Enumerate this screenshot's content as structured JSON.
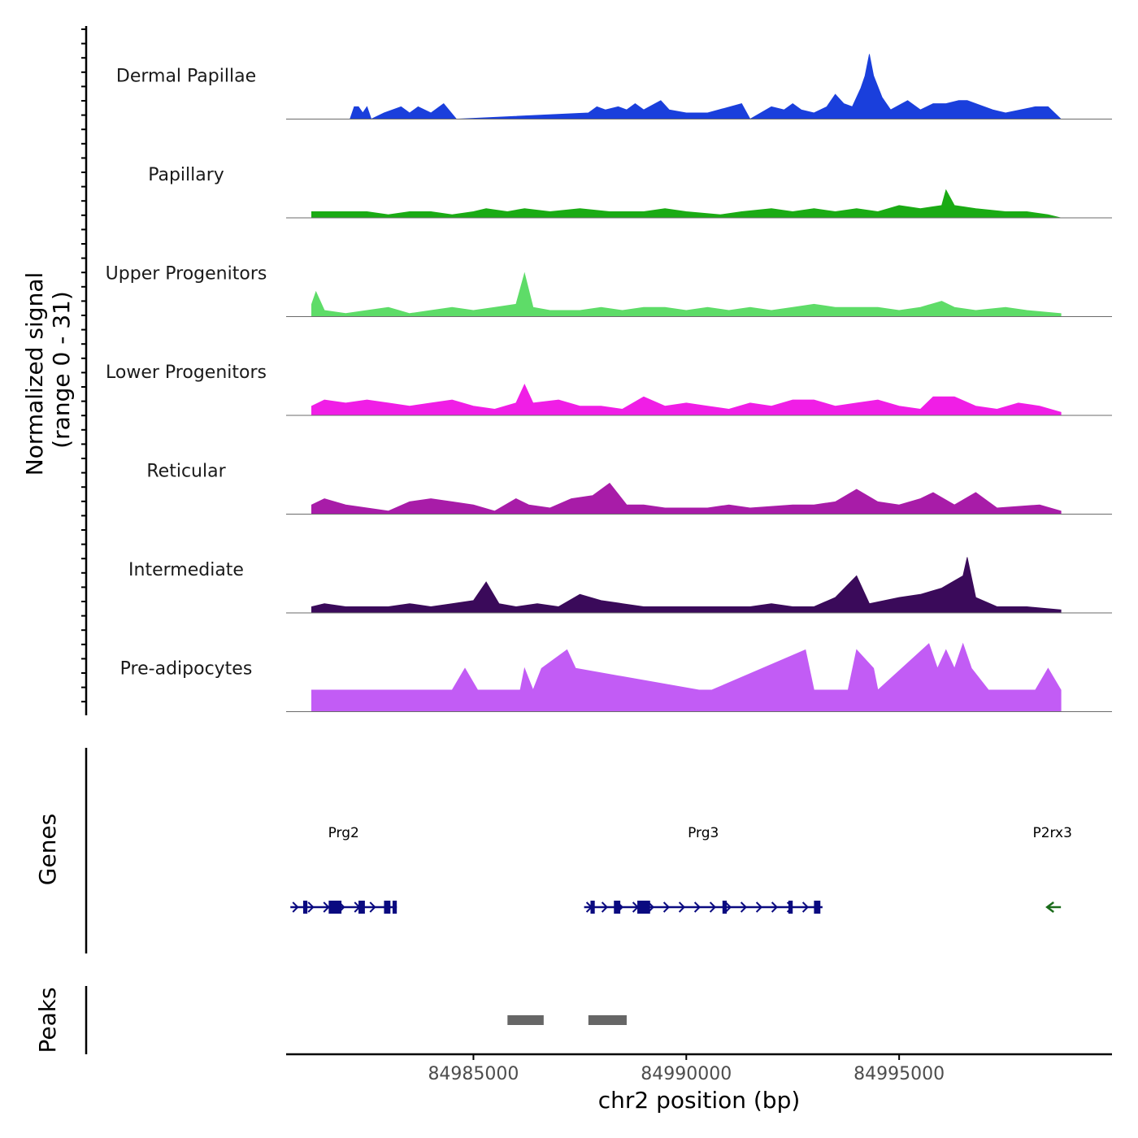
{
  "chart_data": {
    "type": "area",
    "title": "",
    "y_axis_label_line1": "Normalized signal",
    "y_axis_label_line2": "(range 0 - 31)",
    "ylim": [
      0,
      31
    ],
    "xlabel": "chr2 position (bp)",
    "xlim": [
      84980600,
      85000000
    ],
    "x_ticks": [
      84985000,
      84990000,
      84995000
    ],
    "x_tick_labels": [
      "84985000",
      "84990000",
      "84995000"
    ],
    "series": [
      {
        "name": "Dermal Papillae",
        "color": "#1a3fdc",
        "points": [
          [
            84982100,
            0
          ],
          [
            84982200,
            4
          ],
          [
            84982300,
            4
          ],
          [
            84982400,
            2
          ],
          [
            84982500,
            4
          ],
          [
            84982600,
            0
          ],
          [
            84982900,
            2
          ],
          [
            84983300,
            4
          ],
          [
            84983500,
            2
          ],
          [
            84983700,
            4
          ],
          [
            84984000,
            2
          ],
          [
            84984300,
            5
          ],
          [
            84984600,
            0
          ],
          [
            84987700,
            2
          ],
          [
            84987900,
            4
          ],
          [
            84988100,
            3
          ],
          [
            84988400,
            4
          ],
          [
            84988600,
            3
          ],
          [
            84988800,
            5
          ],
          [
            84989000,
            3
          ],
          [
            84989400,
            6
          ],
          [
            84989600,
            3
          ],
          [
            84990000,
            2
          ],
          [
            84990500,
            2
          ],
          [
            84991300,
            5
          ],
          [
            84991500,
            0
          ],
          [
            84992000,
            4
          ],
          [
            84992300,
            3
          ],
          [
            84992500,
            5
          ],
          [
            84992700,
            3
          ],
          [
            84993000,
            2
          ],
          [
            84993300,
            4
          ],
          [
            84993500,
            8
          ],
          [
            84993700,
            5
          ],
          [
            84993900,
            4
          ],
          [
            84994100,
            10
          ],
          [
            84994200,
            14
          ],
          [
            84994300,
            21
          ],
          [
            84994400,
            14
          ],
          [
            84994600,
            7
          ],
          [
            84994800,
            3
          ],
          [
            84995200,
            6
          ],
          [
            84995500,
            3
          ],
          [
            84995800,
            5
          ],
          [
            84996100,
            5
          ],
          [
            84996400,
            6
          ],
          [
            84996600,
            6
          ],
          [
            84997200,
            3
          ],
          [
            84997500,
            2
          ],
          [
            84998200,
            4
          ],
          [
            84998500,
            4
          ],
          [
            84998800,
            0
          ]
        ]
      },
      {
        "name": "Papillary",
        "color": "#1aab14",
        "points": [
          [
            84981200,
            2
          ],
          [
            84981500,
            2
          ],
          [
            84982000,
            2
          ],
          [
            84982500,
            2
          ],
          [
            84983000,
            1
          ],
          [
            84983500,
            2
          ],
          [
            84984000,
            2
          ],
          [
            84984500,
            1
          ],
          [
            84985000,
            2
          ],
          [
            84985300,
            3
          ],
          [
            84985800,
            2
          ],
          [
            84986200,
            3
          ],
          [
            84986800,
            2
          ],
          [
            84987500,
            3
          ],
          [
            84988200,
            2
          ],
          [
            84989000,
            2
          ],
          [
            84989500,
            3
          ],
          [
            84990000,
            2
          ],
          [
            84990800,
            1
          ],
          [
            84991300,
            2
          ],
          [
            84992000,
            3
          ],
          [
            84992500,
            2
          ],
          [
            84993000,
            3
          ],
          [
            84993500,
            2
          ],
          [
            84994000,
            3
          ],
          [
            84994500,
            2
          ],
          [
            84995000,
            4
          ],
          [
            84995500,
            3
          ],
          [
            84996000,
            4
          ],
          [
            84996100,
            9
          ],
          [
            84996300,
            4
          ],
          [
            84996800,
            3
          ],
          [
            84997500,
            2
          ],
          [
            84998000,
            2
          ],
          [
            84998500,
            1
          ],
          [
            84998800,
            0
          ]
        ]
      },
      {
        "name": "Upper Progenitors",
        "color": "#5edc68",
        "points": [
          [
            84981200,
            4
          ],
          [
            84981300,
            8
          ],
          [
            84981500,
            2
          ],
          [
            84982000,
            1
          ],
          [
            84982500,
            2
          ],
          [
            84983000,
            3
          ],
          [
            84983500,
            1
          ],
          [
            84984000,
            2
          ],
          [
            84984500,
            3
          ],
          [
            84985000,
            2
          ],
          [
            84985500,
            3
          ],
          [
            84986000,
            4
          ],
          [
            84986200,
            14
          ],
          [
            84986400,
            3
          ],
          [
            84986800,
            2
          ],
          [
            84987500,
            2
          ],
          [
            84988000,
            3
          ],
          [
            84988500,
            2
          ],
          [
            84989000,
            3
          ],
          [
            84989500,
            3
          ],
          [
            84990000,
            2
          ],
          [
            84990500,
            3
          ],
          [
            84991000,
            2
          ],
          [
            84991500,
            3
          ],
          [
            84992000,
            2
          ],
          [
            84992500,
            3
          ],
          [
            84993000,
            4
          ],
          [
            84993500,
            3
          ],
          [
            84994000,
            3
          ],
          [
            84994500,
            3
          ],
          [
            84995000,
            2
          ],
          [
            84995500,
            3
          ],
          [
            84996000,
            5
          ],
          [
            84996300,
            3
          ],
          [
            84996800,
            2
          ],
          [
            84997500,
            3
          ],
          [
            84998000,
            2
          ],
          [
            84998800,
            1
          ]
        ]
      },
      {
        "name": "Lower Progenitors",
        "color": "#f01ee6",
        "points": [
          [
            84981200,
            3
          ],
          [
            84981500,
            5
          ],
          [
            84982000,
            4
          ],
          [
            84982500,
            5
          ],
          [
            84983000,
            4
          ],
          [
            84983500,
            3
          ],
          [
            84984000,
            4
          ],
          [
            84984500,
            5
          ],
          [
            84985000,
            3
          ],
          [
            84985500,
            2
          ],
          [
            84986000,
            4
          ],
          [
            84986200,
            10
          ],
          [
            84986400,
            4
          ],
          [
            84987000,
            5
          ],
          [
            84987500,
            3
          ],
          [
            84988000,
            3
          ],
          [
            84988500,
            2
          ],
          [
            84989000,
            6
          ],
          [
            84989500,
            3
          ],
          [
            84990000,
            4
          ],
          [
            84990500,
            3
          ],
          [
            84991000,
            2
          ],
          [
            84991500,
            4
          ],
          [
            84992000,
            3
          ],
          [
            84992500,
            5
          ],
          [
            84993000,
            5
          ],
          [
            84993500,
            3
          ],
          [
            84994000,
            4
          ],
          [
            84994500,
            5
          ],
          [
            84995000,
            3
          ],
          [
            84995500,
            2
          ],
          [
            84995800,
            6
          ],
          [
            84996300,
            6
          ],
          [
            84996800,
            3
          ],
          [
            84997300,
            2
          ],
          [
            84997800,
            4
          ],
          [
            84998300,
            3
          ],
          [
            84998800,
            1
          ]
        ]
      },
      {
        "name": "Reticular",
        "color": "#a81ca8",
        "points": [
          [
            84981200,
            3
          ],
          [
            84981500,
            5
          ],
          [
            84982000,
            3
          ],
          [
            84982500,
            2
          ],
          [
            84983000,
            1
          ],
          [
            84983500,
            4
          ],
          [
            84984000,
            5
          ],
          [
            84984500,
            4
          ],
          [
            84985000,
            3
          ],
          [
            84985500,
            1
          ],
          [
            84986000,
            5
          ],
          [
            84986300,
            3
          ],
          [
            84986800,
            2
          ],
          [
            84987300,
            5
          ],
          [
            84987800,
            6
          ],
          [
            84988200,
            10
          ],
          [
            84988600,
            3
          ],
          [
            84989000,
            3
          ],
          [
            84989500,
            2
          ],
          [
            84990000,
            2
          ],
          [
            84990500,
            2
          ],
          [
            84991000,
            3
          ],
          [
            84991500,
            2
          ],
          [
            84992500,
            3
          ],
          [
            84993000,
            3
          ],
          [
            84993500,
            4
          ],
          [
            84994000,
            8
          ],
          [
            84994500,
            4
          ],
          [
            84995000,
            3
          ],
          [
            84995500,
            5
          ],
          [
            84995800,
            7
          ],
          [
            84996300,
            3
          ],
          [
            84996800,
            7
          ],
          [
            84997300,
            2
          ],
          [
            84998300,
            3
          ],
          [
            84998800,
            1
          ]
        ]
      },
      {
        "name": "Intermediate",
        "color": "#3a0a5a",
        "points": [
          [
            84981200,
            2
          ],
          [
            84981500,
            3
          ],
          [
            84982000,
            2
          ],
          [
            84982500,
            2
          ],
          [
            84983000,
            2
          ],
          [
            84983500,
            3
          ],
          [
            84984000,
            2
          ],
          [
            84984500,
            3
          ],
          [
            84985000,
            4
          ],
          [
            84985300,
            10
          ],
          [
            84985600,
            3
          ],
          [
            84986000,
            2
          ],
          [
            84986500,
            3
          ],
          [
            84987000,
            2
          ],
          [
            84987500,
            6
          ],
          [
            84988000,
            4
          ],
          [
            84988500,
            3
          ],
          [
            84989000,
            2
          ],
          [
            84989500,
            2
          ],
          [
            84990400,
            2
          ],
          [
            84991000,
            2
          ],
          [
            84991500,
            2
          ],
          [
            84992000,
            3
          ],
          [
            84992500,
            2
          ],
          [
            84993000,
            2
          ],
          [
            84993500,
            5
          ],
          [
            84994000,
            12
          ],
          [
            84994300,
            3
          ],
          [
            84995000,
            5
          ],
          [
            84995500,
            6
          ],
          [
            84996000,
            8
          ],
          [
            84996500,
            12
          ],
          [
            84996600,
            18
          ],
          [
            84996800,
            5
          ],
          [
            84997300,
            2
          ],
          [
            84998000,
            2
          ],
          [
            84998800,
            1
          ]
        ]
      },
      {
        "name": "Pre-adipocytes",
        "color": "#c25cf5",
        "points": [
          [
            84981200,
            7
          ],
          [
            84981400,
            7
          ],
          [
            84982700,
            7
          ],
          [
            84983000,
            7
          ],
          [
            84983300,
            7
          ],
          [
            84983500,
            7
          ],
          [
            84984000,
            7
          ],
          [
            84984500,
            7
          ],
          [
            84984800,
            14
          ],
          [
            84985100,
            7
          ],
          [
            84985800,
            7
          ],
          [
            84986100,
            7
          ],
          [
            84986200,
            14
          ],
          [
            84986400,
            7
          ],
          [
            84986600,
            14
          ],
          [
            84987200,
            20
          ],
          [
            84987400,
            14
          ],
          [
            84990300,
            7
          ],
          [
            84990600,
            7
          ],
          [
            84992800,
            20
          ],
          [
            84993000,
            7
          ],
          [
            84993300,
            7
          ],
          [
            84993800,
            7
          ],
          [
            84994000,
            20
          ],
          [
            84994400,
            14
          ],
          [
            84994500,
            7
          ],
          [
            84995700,
            22
          ],
          [
            84995900,
            14
          ],
          [
            84996100,
            20
          ],
          [
            84996300,
            14
          ],
          [
            84996500,
            22
          ],
          [
            84996700,
            14
          ],
          [
            84997100,
            7
          ],
          [
            84997500,
            7
          ],
          [
            84998000,
            7
          ],
          [
            84998200,
            7
          ],
          [
            84998500,
            14
          ],
          [
            84998800,
            7
          ]
        ]
      }
    ],
    "genes": [
      {
        "name": "Prg2",
        "strand": "+",
        "color": "#0a0a80",
        "start": 84980700,
        "end": 84983200,
        "exons": [
          [
            84981000,
            84981100
          ],
          [
            84981600,
            84981900
          ],
          [
            84982300,
            84982450
          ],
          [
            84982900,
            84983050
          ],
          [
            84983100,
            84983200
          ]
        ]
      },
      {
        "name": "Prg3",
        "strand": "+",
        "color": "#0a0a80",
        "start": 84987600,
        "end": 84993200,
        "exons": [
          [
            84987750,
            84987850
          ],
          [
            84988300,
            84988450
          ],
          [
            84988850,
            84989150
          ],
          [
            84990850,
            84990950
          ],
          [
            84992400,
            84992500
          ],
          [
            84993000,
            84993150
          ]
        ]
      },
      {
        "name": "P2rx3",
        "strand": "-",
        "color": "#1a6b1a",
        "start": 84998400,
        "end": 84998800,
        "exons": []
      }
    ],
    "peaks_label": "Peaks",
    "genes_label": "Genes",
    "peaks": [
      [
        84985800,
        84986650
      ],
      [
        84987700,
        84988600
      ]
    ]
  }
}
